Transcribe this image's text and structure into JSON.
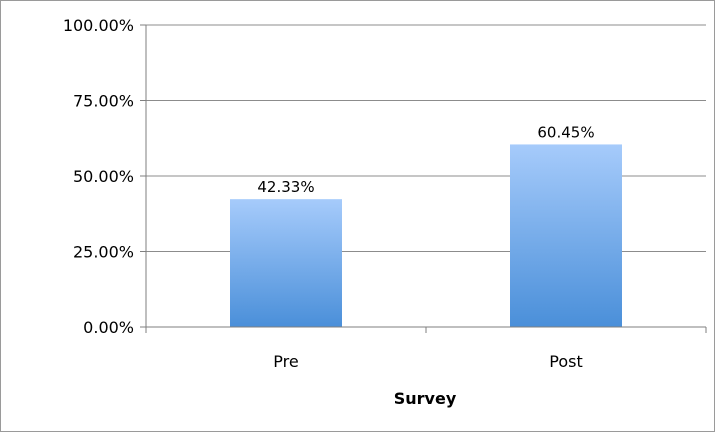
{
  "chart_data": {
    "type": "bar",
    "title": "",
    "xlabel": "Survey",
    "ylabel": "",
    "categories": [
      "Pre",
      "Post"
    ],
    "values": [
      42.33,
      60.45
    ],
    "data_labels": [
      "42.33%",
      "60.45%"
    ],
    "ylim": [
      0,
      100
    ],
    "yticks": [
      0,
      25,
      50,
      75,
      100
    ],
    "ytick_labels": [
      "0.00%",
      "25.00%",
      "50.00%",
      "75.00%",
      "100.00%"
    ],
    "grid": true,
    "legend": "none",
    "colors": {
      "bar_top": "#a6cbfb",
      "bar_bottom": "#4a8fd9",
      "grid": "#8c8c8c",
      "axis": "#7f7f7f",
      "frame": "#9a9a9a"
    }
  }
}
